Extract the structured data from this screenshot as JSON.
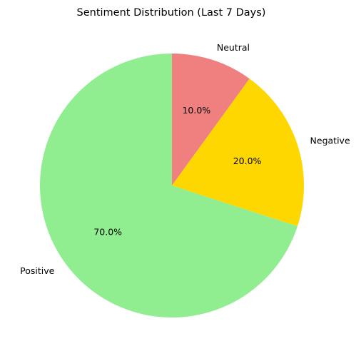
{
  "chart_data": {
    "type": "pie",
    "title": "Sentiment Distribution (Last 7 Days)",
    "slices": [
      {
        "label": "Neutral",
        "value": 10.0,
        "pct_label": "10.0%",
        "color": "#f08080"
      },
      {
        "label": "Negative",
        "value": 20.0,
        "pct_label": "20.0%",
        "color": "#ffd700"
      },
      {
        "label": "Positive",
        "value": 70.0,
        "pct_label": "70.0%",
        "color": "#90ee90"
      }
    ],
    "start_angle": 90,
    "direction": "clockwise"
  }
}
